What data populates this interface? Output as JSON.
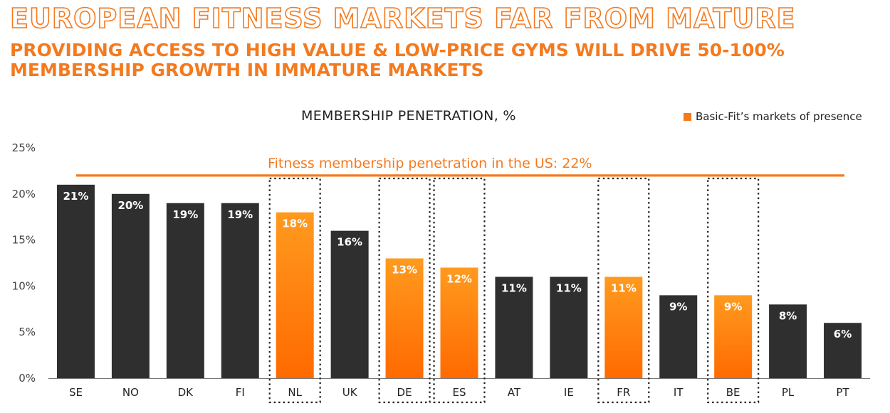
{
  "header": {
    "title": "EUROPEAN FITNESS MARKETS FAR FROM MATURE",
    "subtitle": "PROVIDING ACCESS TO HIGH VALUE & LOW-PRICE GYMS WILL DRIVE 50-100% MEMBERSHIP GROWTH IN IMMATURE MARKETS"
  },
  "chart_data": {
    "type": "bar",
    "title": "MEMBERSHIP PENETRATION, %",
    "categories": [
      "SE",
      "NO",
      "DK",
      "FI",
      "NL",
      "UK",
      "DE",
      "ES",
      "AT",
      "IE",
      "FR",
      "IT",
      "BE",
      "PL",
      "PT"
    ],
    "values": [
      21,
      20,
      19,
      19,
      18,
      16,
      13,
      12,
      11,
      11,
      11,
      9,
      9,
      8,
      6
    ],
    "data_labels": [
      "21%",
      "20%",
      "19%",
      "19%",
      "18%",
      "16%",
      "13%",
      "12%",
      "11%",
      "11%",
      "11%",
      "9%",
      "9%",
      "8%",
      "6%"
    ],
    "highlighted": [
      "NL",
      "DE",
      "ES",
      "FR",
      "BE"
    ],
    "legend": {
      "label": "Basic-Fit’s markets of presence",
      "position": "top-right"
    },
    "y_ticks": [
      "0%",
      "5%",
      "10%",
      "15%",
      "20%",
      "25%"
    ],
    "ylim": [
      0,
      25
    ],
    "reference_line": {
      "value": 22,
      "label": "Fitness membership penetration in the US: 22%"
    },
    "grid": false,
    "colors": {
      "default_bar": "#2f2f2f",
      "highlight_top": "#ff9a1f",
      "highlight_bottom": "#ff6a00",
      "accent": "#f47a1f"
    }
  }
}
